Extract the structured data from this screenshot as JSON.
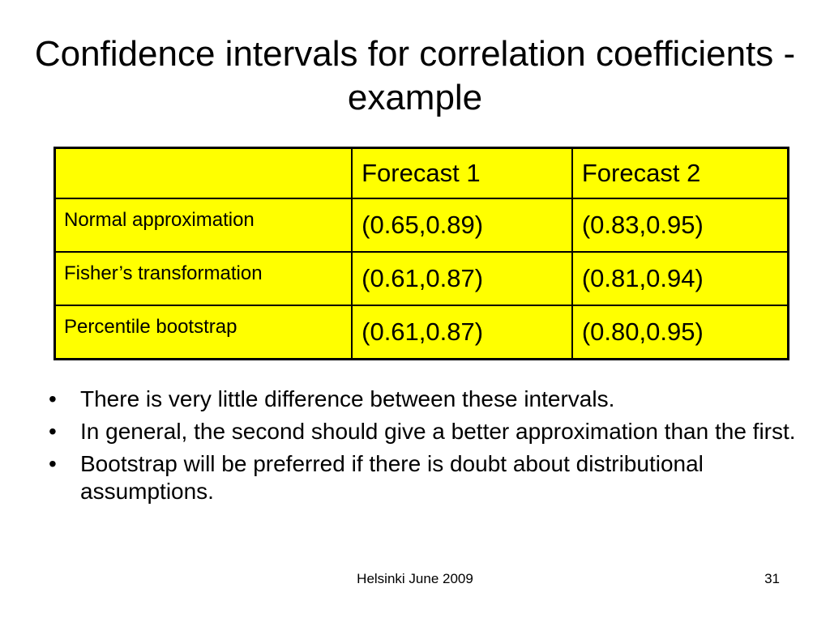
{
  "slide": {
    "title": "Confidence intervals for correlation coefficients - example"
  },
  "table": {
    "header": [
      "",
      "Forecast 1",
      "Forecast 2"
    ],
    "rows": [
      {
        "method": "Normal approximation",
        "forecast1": "(0.65,0.89)",
        "forecast2": "(0.83,0.95)"
      },
      {
        "method": "Fisher’s transformation",
        "forecast1": "(0.61,0.87)",
        "forecast2": "(0.81,0.94)"
      },
      {
        "method": "Percentile bootstrap",
        "forecast1": "(0.61,0.87)",
        "forecast2": "(0.80,0.95)"
      }
    ]
  },
  "bullets": {
    "marker": "•",
    "items": [
      "There is very little difference between these intervals.",
      "In general, the second should give a better approximation than the first.",
      "Bootstrap will be preferred if there is doubt about distributional assumptions."
    ]
  },
  "footer": {
    "text": "Helsinki June 2009",
    "page_number": "31"
  },
  "colors": {
    "table_fill": "#ffff00",
    "border": "#000000",
    "background": "#ffffff"
  }
}
